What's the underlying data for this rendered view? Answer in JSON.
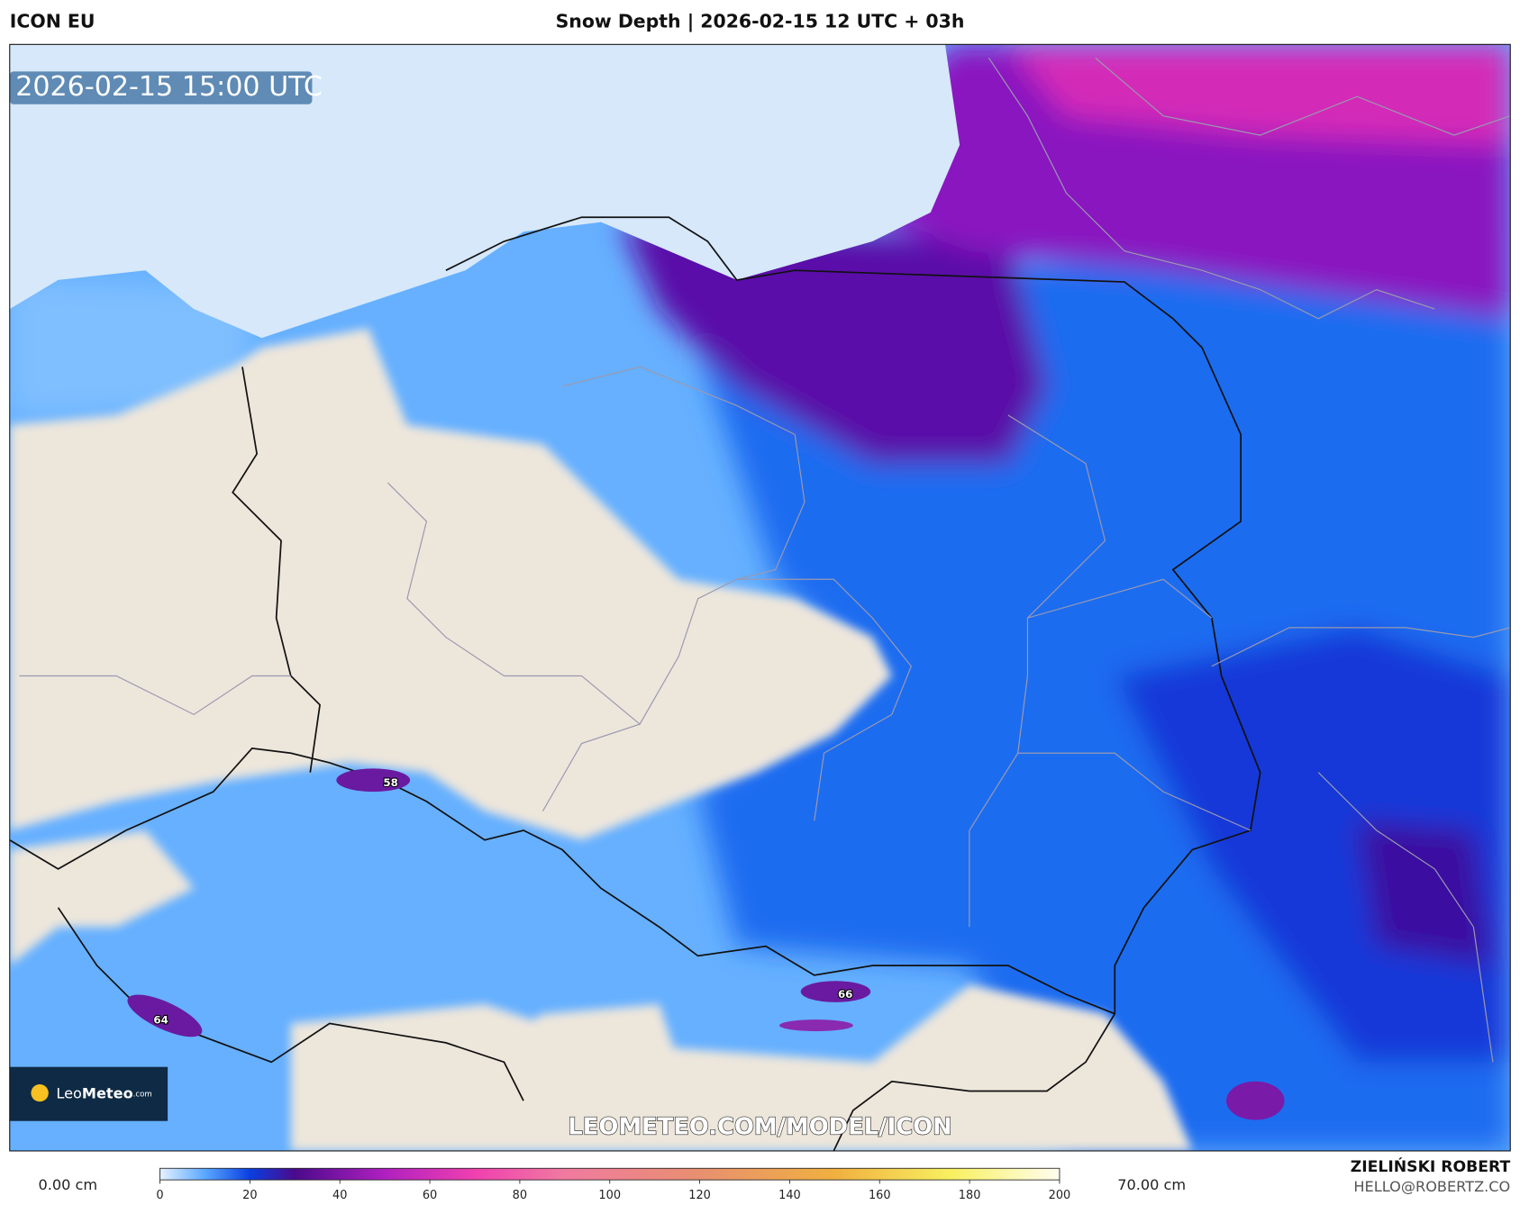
{
  "header": {
    "model": "ICON EU",
    "title": "Snow Depth | 2026-02-15 12 UTC + 03h"
  },
  "map": {
    "valid_time": "2026-02-15 15:00 UTC",
    "watermark": "LEOMETEO.COM/MODEL/ICON",
    "peaks": [
      58,
      64,
      66
    ]
  },
  "logo": {
    "name": "Leo",
    "name_bold": "Meteo",
    "suffix": ".com"
  },
  "legend": {
    "min_label": "0.00 cm",
    "max_label": "70.00 cm",
    "ticks": [
      0,
      20,
      40,
      60,
      80,
      100,
      120,
      140,
      160,
      180,
      200
    ]
  },
  "footer": {
    "author": "ZIELIŃSKI ROBERT",
    "email": "HELLO@ROBERTZ.CO"
  }
}
